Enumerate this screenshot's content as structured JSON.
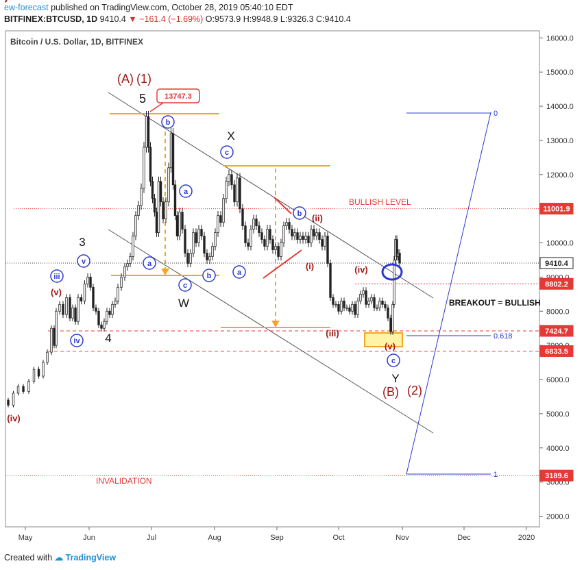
{
  "header": {
    "author": "ew-forecast",
    "published_text": "published on TradingView.com, October 28, 2019 05:40:10 EDT",
    "symbol": "BITFINEX:BTCUSD, 1D",
    "last": "9410.4",
    "change": "−161.4 (−1.69%)",
    "ohlc": "O:9573.9 H:9948.9 L:9326.3 C:9410.4"
  },
  "footer": {
    "created_with": "Created with",
    "brand": "TradingView"
  },
  "colors": {
    "up_candle": "#2b2b2b",
    "orange": "#f5a623",
    "red_level": "#e53935",
    "dark_red": "#a01818",
    "blue": "#2a3ad0",
    "trend_line": "#555555"
  },
  "chart_data": {
    "type": "candlestick",
    "title": "Bitcoin / U.S. Dollar, 1D, BITFINEX",
    "x_ticks": [
      "May",
      "Jun",
      "Jul",
      "Aug",
      "Sep",
      "Oct",
      "Nov",
      "Dec",
      "2020"
    ],
    "y_ticks": [
      "2000.0",
      "3000.0",
      "4000.0",
      "5000.0",
      "6000.0",
      "7000.0",
      "8000.0",
      "9000.0",
      "10000.0",
      "11000.0",
      "12000.0",
      "13000.0",
      "14000.0",
      "15000.0",
      "16000.0"
    ],
    "ylim": [
      1600,
      16400
    ],
    "price_badges": [
      {
        "label": "11001.9",
        "value": 11001.9,
        "kind": "bullish"
      },
      {
        "label": "9410.4",
        "value": 9410.4,
        "kind": "last"
      },
      {
        "label": "8802.2",
        "value": 8802.2,
        "kind": "level"
      },
      {
        "label": "7424.7",
        "value": 7424.7,
        "kind": "level"
      },
      {
        "label": "6833.5",
        "value": 6833.5,
        "kind": "level"
      },
      {
        "label": "3189.6",
        "value": 3189.6,
        "kind": "invalidation"
      }
    ],
    "high_callout": {
      "label": "13747.3",
      "value": 13747.3
    },
    "text_labels": {
      "bullish_level": "BULLISH LEVEL",
      "invalidation": "INVALIDATION",
      "breakout": "BREAKOUT = BULLISH",
      "fib_0": "0",
      "fib_0618": "0.618",
      "fib_1": "1"
    },
    "wave_labels": [
      {
        "text": "(A)",
        "color": "dark_red"
      },
      {
        "text": "(1)",
        "color": "dark_red"
      },
      {
        "text": "5",
        "color": "black"
      },
      {
        "text": "X",
        "color": "black"
      },
      {
        "text": "3",
        "color": "black"
      },
      {
        "text": "4",
        "color": "black"
      },
      {
        "text": "W",
        "color": "black"
      },
      {
        "text": "Y",
        "color": "black"
      },
      {
        "text": "(B)",
        "color": "dark_red"
      },
      {
        "text": "(2)",
        "color": "dark_red"
      },
      {
        "text": "(iv)",
        "color": "dark_red"
      },
      {
        "text": "(v)",
        "color": "dark_red"
      },
      {
        "text": "(ii)",
        "color": "dark_red"
      },
      {
        "text": "(i)",
        "color": "dark_red"
      },
      {
        "text": "(iii)",
        "color": "dark_red"
      },
      {
        "text": "(iv)",
        "color": "dark_red"
      },
      {
        "text": "(v)",
        "color": "dark_red"
      },
      {
        "text": "(iv)",
        "color": "dark_red"
      },
      {
        "text": "iii",
        "color": "blue"
      },
      {
        "text": "v",
        "color": "blue"
      },
      {
        "text": "iv",
        "color": "blue"
      },
      {
        "text": "b",
        "color": "blue"
      },
      {
        "text": "a",
        "color": "blue"
      },
      {
        "text": "a",
        "color": "blue"
      },
      {
        "text": "c",
        "color": "blue"
      },
      {
        "text": "b",
        "color": "blue"
      },
      {
        "text": "c",
        "color": "blue"
      },
      {
        "text": "a",
        "color": "blue"
      },
      {
        "text": "b",
        "color": "blue"
      },
      {
        "text": "c",
        "color": "blue"
      }
    ],
    "price_path": [
      [
        0,
        5400
      ],
      [
        8,
        5250
      ],
      [
        15,
        5600
      ],
      [
        22,
        5800
      ],
      [
        30,
        5650
      ],
      [
        38,
        5950
      ],
      [
        45,
        6300
      ],
      [
        52,
        6100
      ],
      [
        58,
        6500
      ],
      [
        64,
        6800
      ],
      [
        70,
        7500
      ],
      [
        72,
        7000
      ],
      [
        76,
        8000
      ],
      [
        82,
        8200
      ],
      [
        86,
        7900
      ],
      [
        92,
        8400
      ],
      [
        96,
        7800
      ],
      [
        100,
        8100
      ],
      [
        104,
        7700
      ],
      [
        108,
        8400
      ],
      [
        113,
        8300
      ],
      [
        118,
        8800
      ],
      [
        122,
        9000
      ],
      [
        126,
        8700
      ],
      [
        130,
        8100
      ],
      [
        134,
        8000
      ],
      [
        138,
        7600
      ],
      [
        142,
        7500
      ],
      [
        146,
        7700
      ],
      [
        150,
        8000
      ],
      [
        154,
        7900
      ],
      [
        158,
        8200
      ],
      [
        162,
        8300
      ],
      [
        166,
        8700
      ],
      [
        172,
        9000
      ],
      [
        176,
        9300
      ],
      [
        180,
        9400
      ],
      [
        184,
        9600
      ],
      [
        188,
        10200
      ],
      [
        192,
        10800
      ],
      [
        196,
        11100
      ],
      [
        200,
        11600
      ],
      [
        204,
        12800
      ],
      [
        207,
        13700
      ],
      [
        210,
        12800
      ],
      [
        213,
        11800
      ],
      [
        216,
        11300
      ],
      [
        219,
        10900
      ],
      [
        222,
        10300
      ],
      [
        225,
        11800
      ],
      [
        228,
        11200
      ],
      [
        232,
        10700
      ],
      [
        236,
        11200
      ],
      [
        240,
        12200
      ],
      [
        243,
        13200
      ],
      [
        246,
        11700
      ],
      [
        249,
        10800
      ],
      [
        252,
        10200
      ],
      [
        256,
        10900
      ],
      [
        260,
        10400
      ],
      [
        264,
        9700
      ],
      [
        268,
        9400
      ],
      [
        272,
        9700
      ],
      [
        276,
        10300
      ],
      [
        280,
        10000
      ],
      [
        284,
        10400
      ],
      [
        288,
        10200
      ],
      [
        292,
        9700
      ],
      [
        296,
        9500
      ],
      [
        300,
        9600
      ],
      [
        304,
        9900
      ],
      [
        308,
        10300
      ],
      [
        312,
        10800
      ],
      [
        316,
        10600
      ],
      [
        320,
        11300
      ],
      [
        324,
        11800
      ],
      [
        328,
        12000
      ],
      [
        332,
        11700
      ],
      [
        336,
        11200
      ],
      [
        340,
        11900
      ],
      [
        344,
        11000
      ],
      [
        348,
        10500
      ],
      [
        352,
        10000
      ],
      [
        356,
        9900
      ],
      [
        360,
        10400
      ],
      [
        364,
        10700
      ],
      [
        368,
        10500
      ],
      [
        372,
        10300
      ],
      [
        376,
        10100
      ],
      [
        380,
        9900
      ],
      [
        384,
        10400
      ],
      [
        388,
        10100
      ],
      [
        392,
        9800
      ],
      [
        396,
        9900
      ],
      [
        400,
        9600
      ],
      [
        404,
        10000
      ],
      [
        408,
        10500
      ],
      [
        412,
        10600
      ],
      [
        416,
        10400
      ],
      [
        420,
        10200
      ],
      [
        424,
        10300
      ],
      [
        428,
        10100
      ],
      [
        432,
        10200
      ],
      [
        436,
        10100
      ],
      [
        440,
        10200
      ],
      [
        444,
        10000
      ],
      [
        448,
        10400
      ],
      [
        452,
        10200
      ],
      [
        456,
        10300
      ],
      [
        460,
        10100
      ],
      [
        464,
        9900
      ],
      [
        468,
        10200
      ],
      [
        472,
        9400
      ],
      [
        476,
        8400
      ],
      [
        480,
        8200
      ],
      [
        484,
        8200
      ],
      [
        488,
        8000
      ],
      [
        492,
        8300
      ],
      [
        496,
        8100
      ],
      [
        500,
        8100
      ],
      [
        504,
        8000
      ],
      [
        508,
        8200
      ],
      [
        512,
        7900
      ],
      [
        516,
        8300
      ],
      [
        520,
        8500
      ],
      [
        524,
        8600
      ],
      [
        528,
        8200
      ],
      [
        532,
        8300
      ],
      [
        536,
        8400
      ],
      [
        540,
        8100
      ],
      [
        544,
        8100
      ],
      [
        548,
        8300
      ],
      [
        552,
        8200
      ],
      [
        556,
        8100
      ],
      [
        560,
        7800
      ],
      [
        564,
        7400
      ],
      [
        566,
        8200
      ],
      [
        568,
        9500
      ],
      [
        570,
        10100
      ],
      [
        572,
        9600
      ],
      [
        574,
        9700
      ],
      [
        576,
        9410
      ]
    ]
  }
}
